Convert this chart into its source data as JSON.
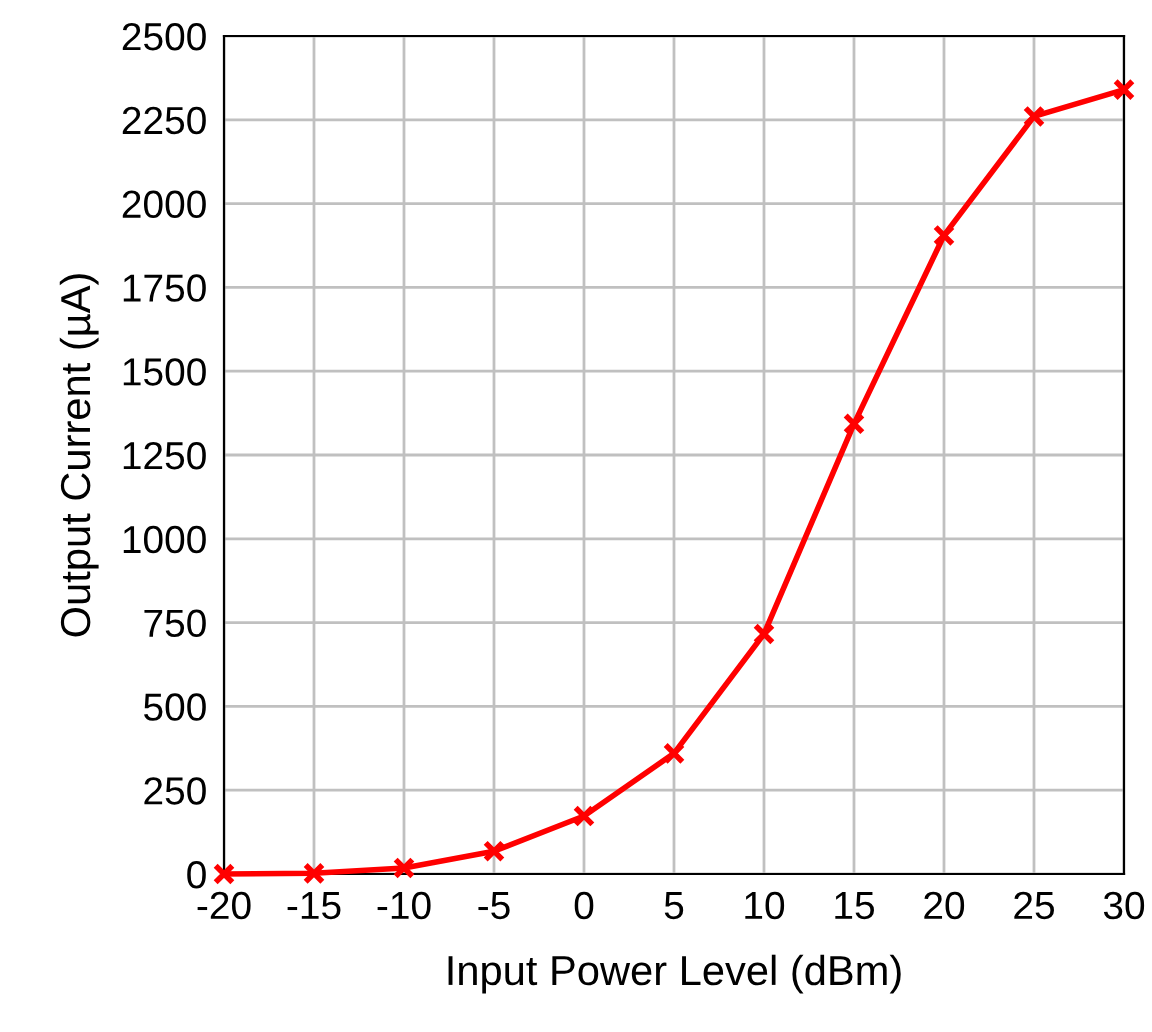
{
  "chart_data": {
    "type": "line",
    "xlabel": "Input Power Level (dBm)",
    "ylabel": "Output Current (µA)",
    "x": [
      -20,
      -15,
      -10,
      -5,
      0,
      5,
      10,
      15,
      20,
      25,
      30
    ],
    "series": [
      {
        "color": "#ff0000",
        "values": [
          0,
          2,
          18,
          68,
          173,
          360,
          716,
          1343,
          1905,
          2260,
          2340
        ]
      }
    ],
    "xlim": [
      -20,
      30
    ],
    "xticks": [
      -20,
      -15,
      -10,
      -5,
      0,
      5,
      10,
      15,
      20,
      25,
      30
    ],
    "ylim": [
      0,
      2500
    ],
    "yticks": [
      0,
      250,
      500,
      750,
      1000,
      1250,
      1500,
      1750,
      2000,
      2250,
      2500
    ],
    "grid": true,
    "marker": "cross",
    "line_style": "solid"
  }
}
